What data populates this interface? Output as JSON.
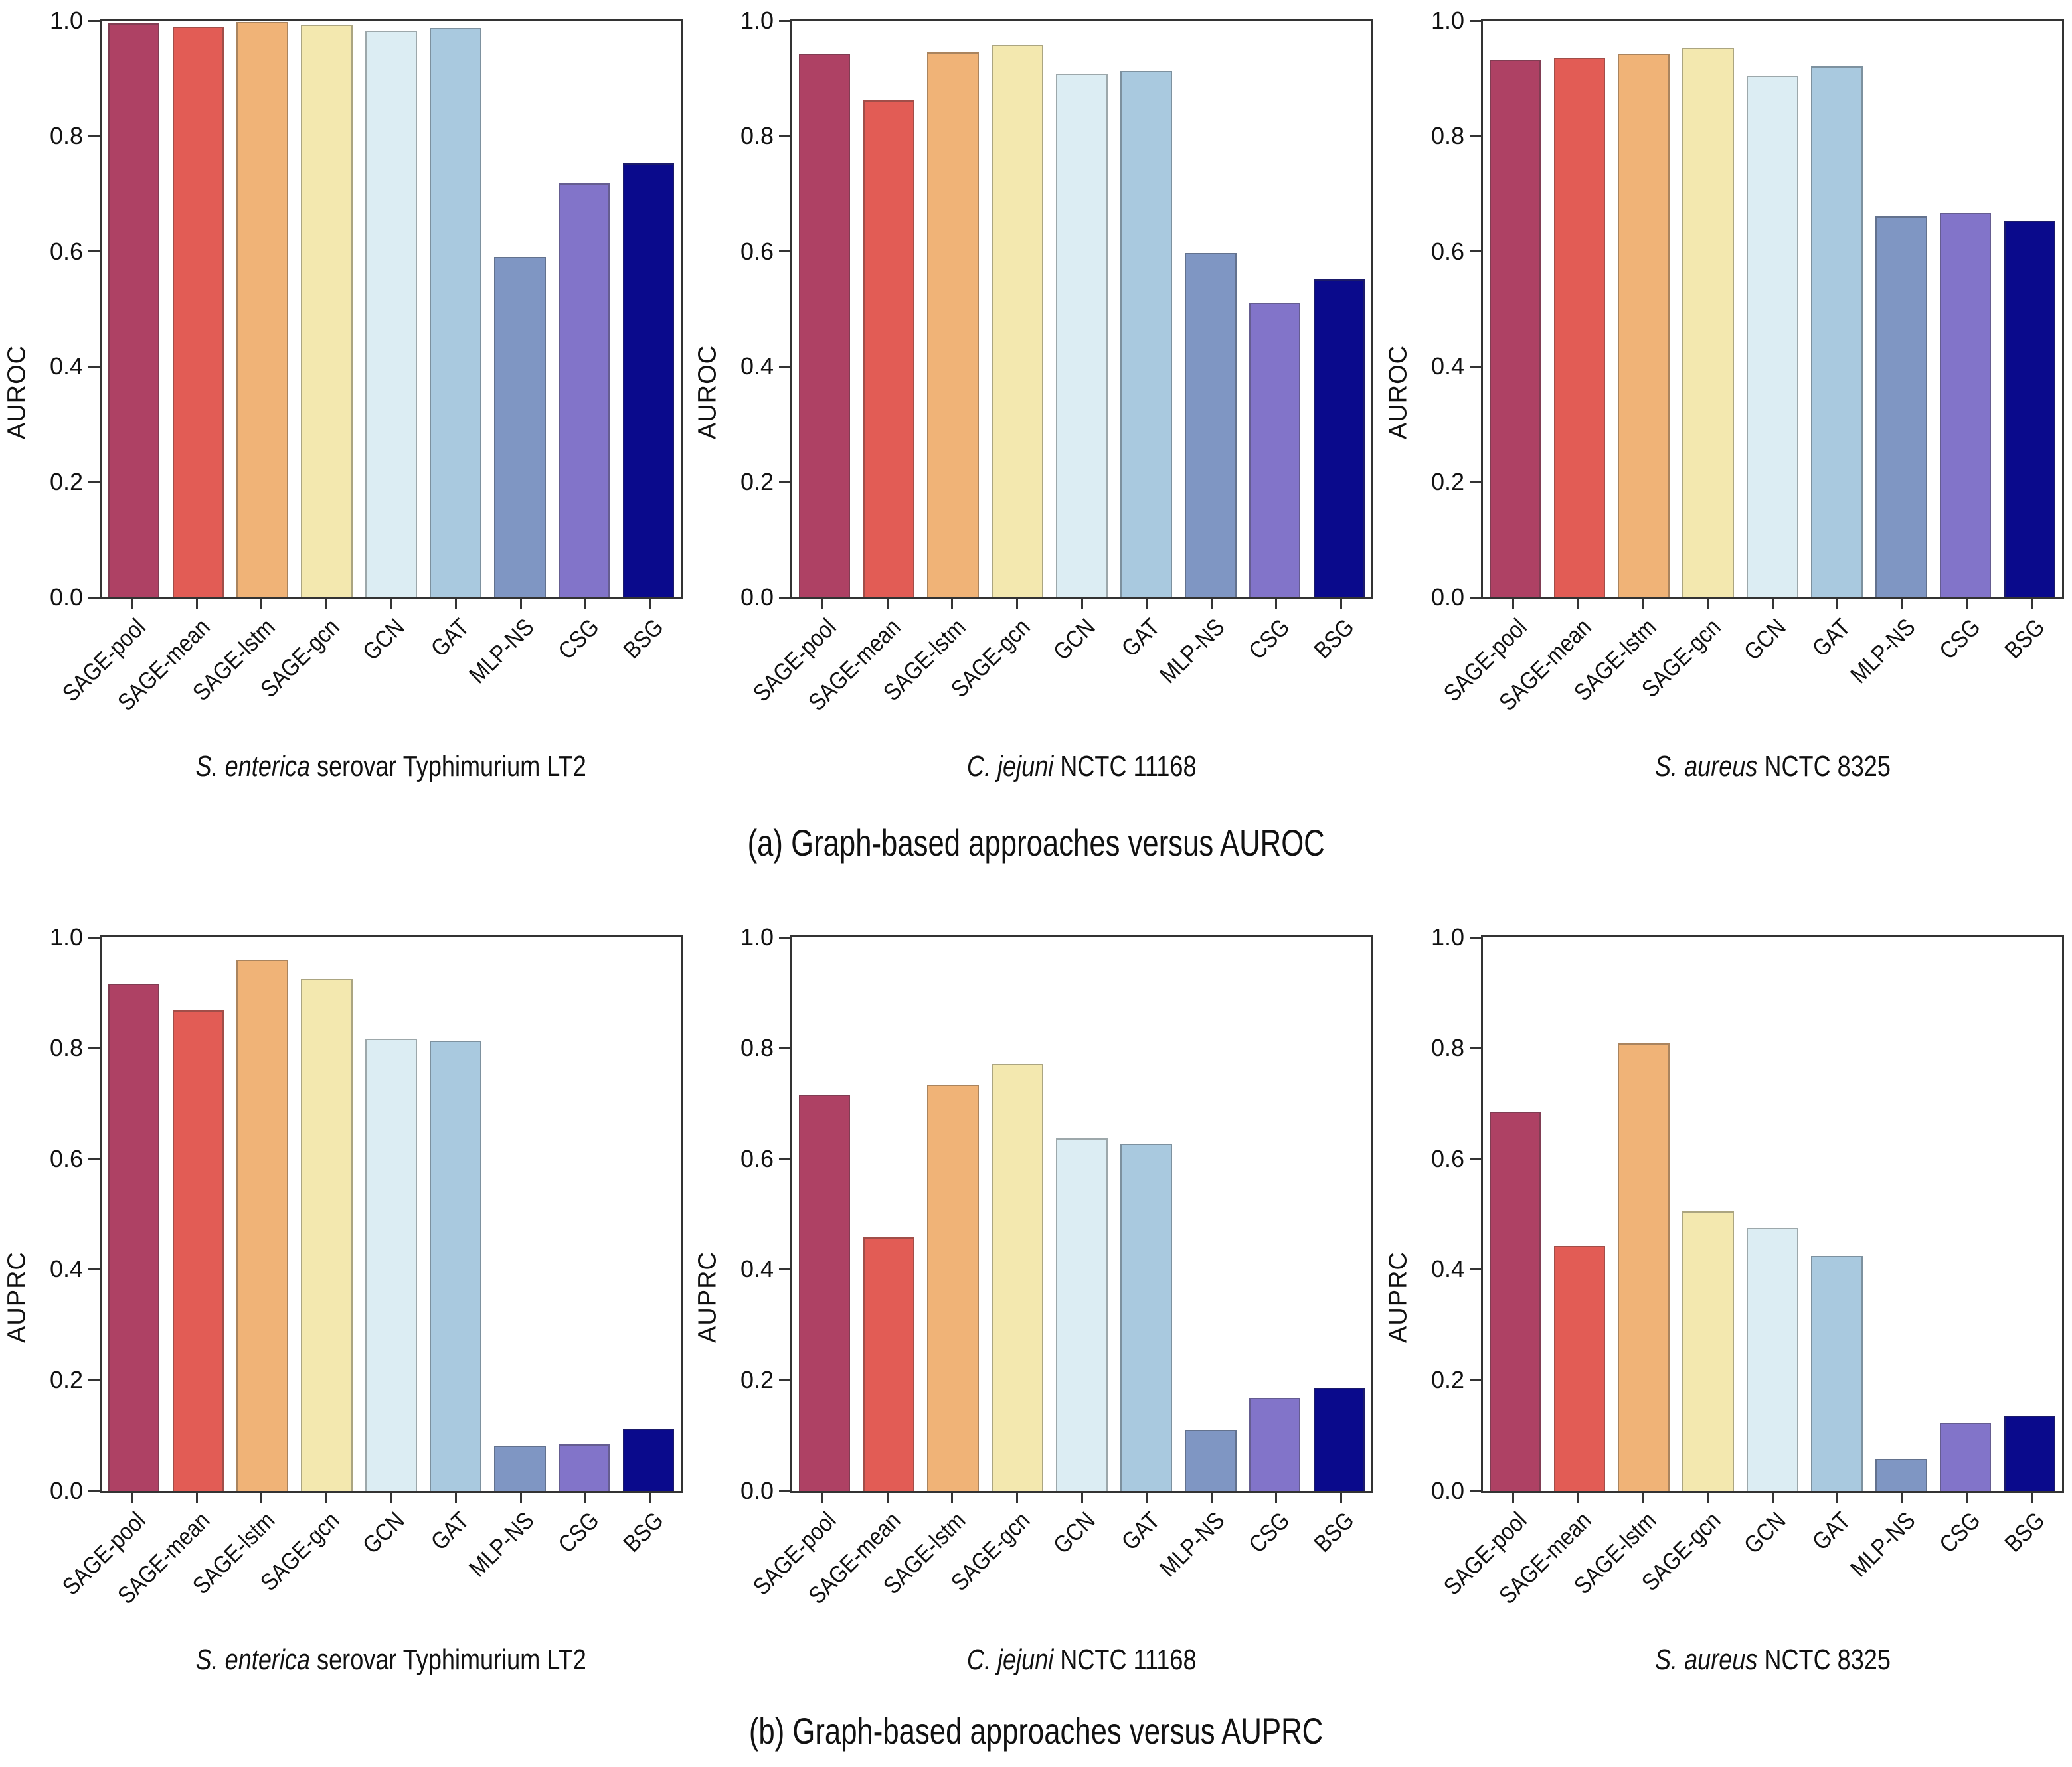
{
  "figure": {
    "captions": {
      "a": "(a) Graph-based approaches versus AUROC",
      "b": "(b) Graph-based approaches versus AUPRC"
    }
  },
  "chart_data": {
    "type": "bar",
    "layout": "2 rows x 3 columns, shared category axis",
    "categories": [
      "SAGE-pool",
      "SAGE-mean",
      "SAGE-lstm",
      "SAGE-gcn",
      "GCN",
      "GAT",
      "MLP-NS",
      "CSG",
      "BSG"
    ],
    "bar_colors": [
      "#ae4164",
      "#e25c55",
      "#f0b377",
      "#f3e8af",
      "#dcedf3",
      "#a9c9df",
      "#7f96c3",
      "#8274c9",
      "#0a0a8c"
    ],
    "ylim": [
      0.0,
      1.0
    ],
    "ytick_labels": [
      "1.0",
      "0.8",
      "0.6",
      "0.4",
      "0.2",
      "0.0"
    ],
    "grid": "off",
    "legend": "none",
    "charts": [
      {
        "ylabel": "AUROC",
        "title_italic": "S. enterica",
        "title_rest": " serovar Typhimurium LT2",
        "values": [
          0.995,
          0.99,
          0.998,
          0.993,
          0.983,
          0.987,
          0.59,
          0.718,
          0.753
        ]
      },
      {
        "ylabel": "AUROC",
        "title_italic": "C. jejuni",
        "title_rest": " NCTC 11168",
        "values": [
          0.942,
          0.862,
          0.945,
          0.957,
          0.908,
          0.913,
          0.597,
          0.511,
          0.551
        ]
      },
      {
        "ylabel": "AUROC",
        "title_italic": "S. aureus",
        "title_rest": " NCTC 8325",
        "values": [
          0.932,
          0.936,
          0.943,
          0.953,
          0.905,
          0.921,
          0.66,
          0.666,
          0.652
        ]
      },
      {
        "ylabel": "AUPRC",
        "title_italic": "S. enterica",
        "title_rest": " serovar Typhimurium LT2",
        "values": [
          0.916,
          0.868,
          0.959,
          0.924,
          0.817,
          0.813,
          0.081,
          0.084,
          0.112
        ]
      },
      {
        "ylabel": "AUPRC",
        "title_italic": "C. jejuni",
        "title_rest": " NCTC 11168",
        "values": [
          0.716,
          0.458,
          0.734,
          0.771,
          0.637,
          0.627,
          0.11,
          0.168,
          0.186
        ]
      },
      {
        "ylabel": "AUPRC",
        "title_italic": "S. aureus",
        "title_rest": " NCTC 8325",
        "values": [
          0.685,
          0.442,
          0.808,
          0.505,
          0.475,
          0.424,
          0.058,
          0.122,
          0.136
        ]
      }
    ]
  }
}
